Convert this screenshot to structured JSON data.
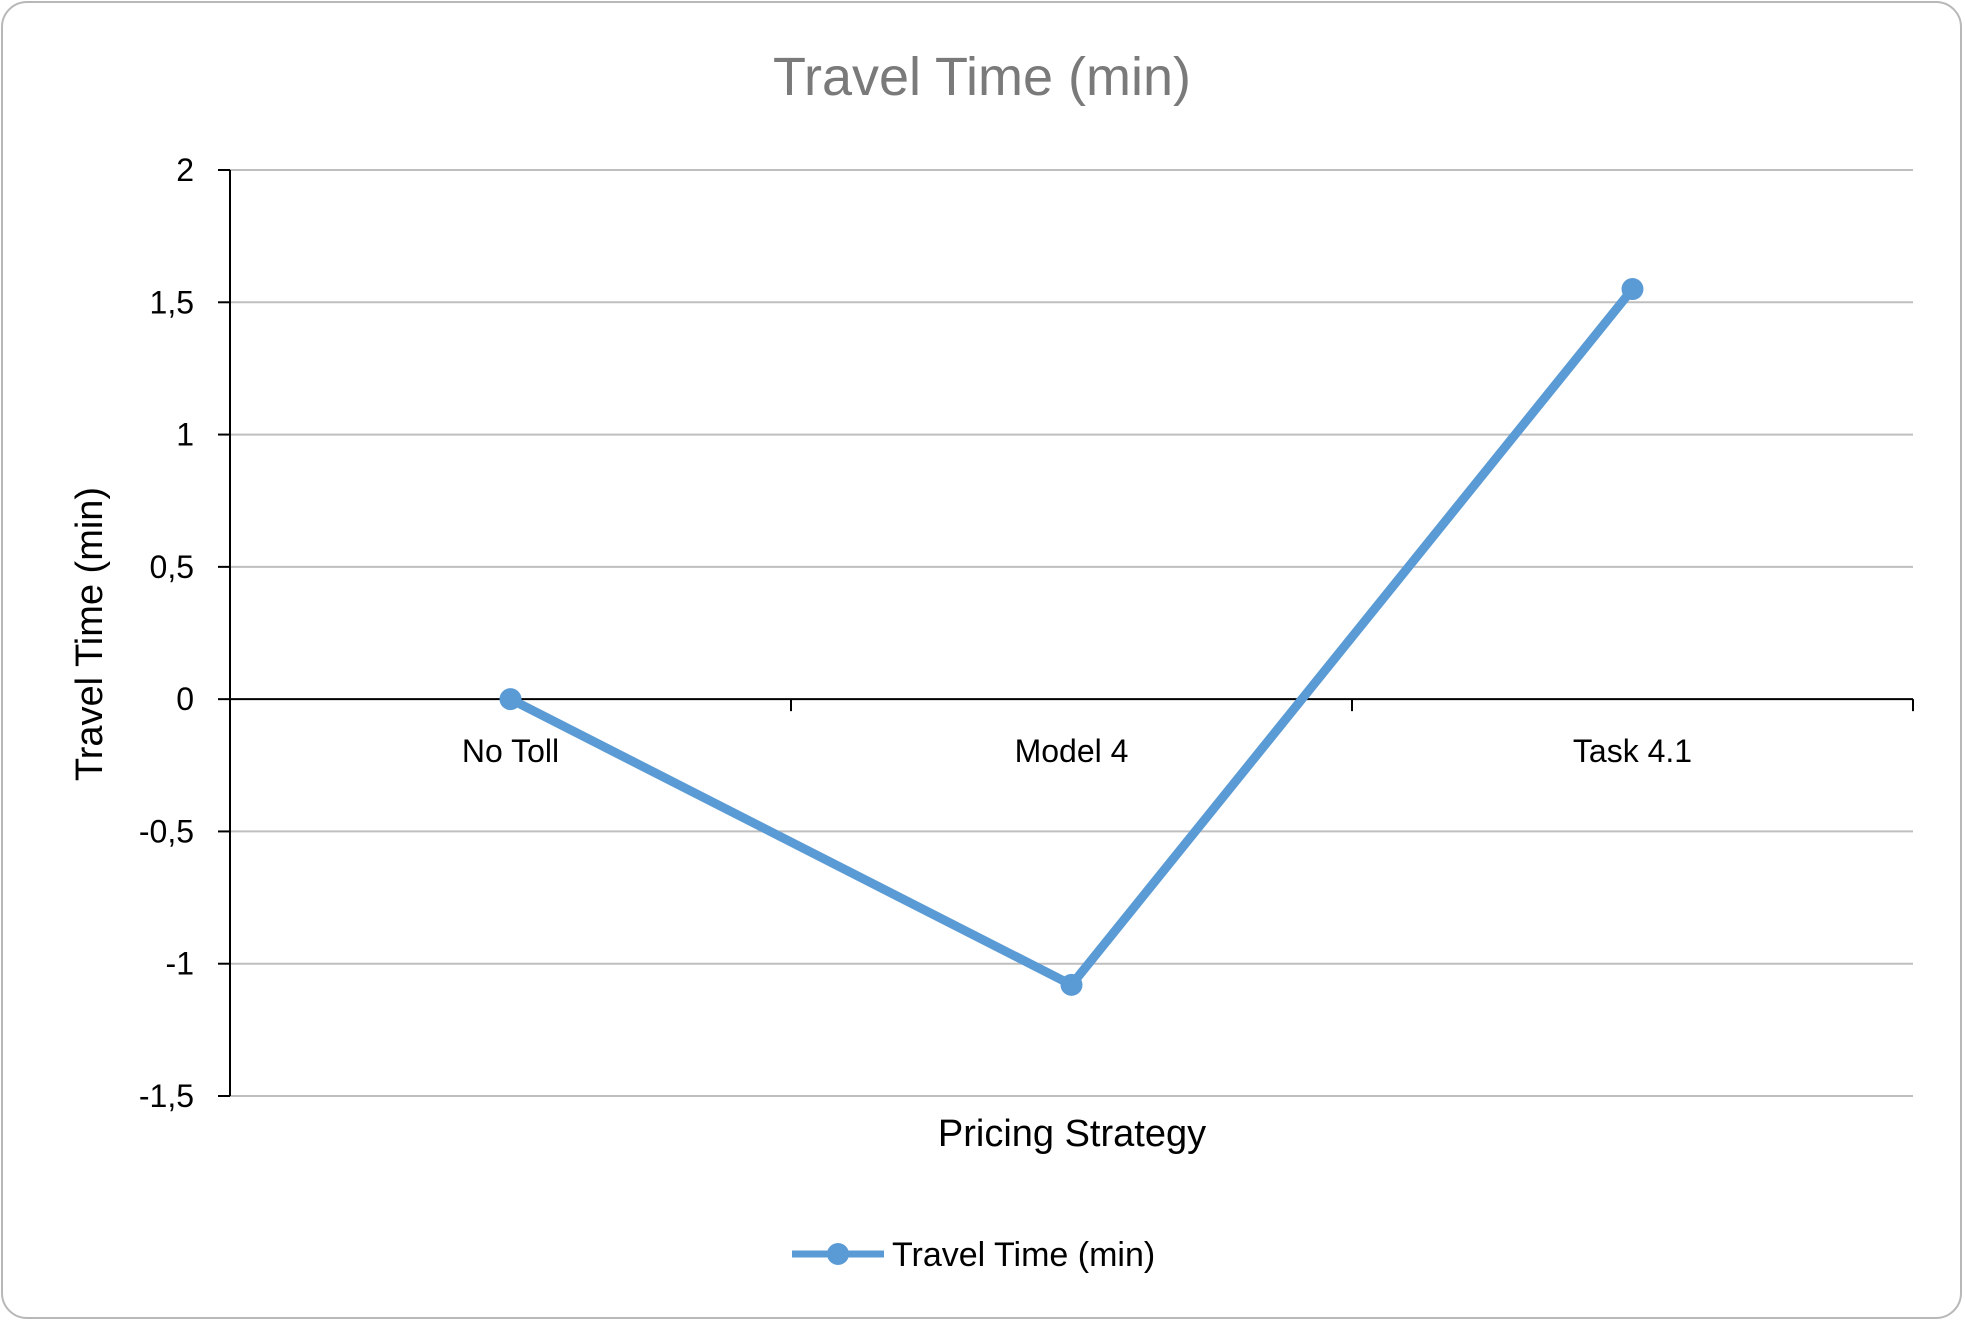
{
  "chart_data": {
    "type": "line",
    "title": "Travel Time (min)",
    "xlabel": "Pricing Strategy",
    "ylabel": "Travel Time (min)",
    "categories": [
      "No Toll",
      "Model 4",
      "Task 4.1"
    ],
    "series": [
      {
        "name": "Travel Time (min)",
        "values": [
          0,
          -1.08,
          1.55
        ],
        "color": "#5b9bd5"
      }
    ],
    "ylim": [
      -1.5,
      2
    ],
    "yticks": [
      2,
      1.5,
      1,
      0.5,
      0,
      -0.5,
      -1,
      -1.5
    ],
    "ytick_labels": [
      "2",
      "1,5",
      "1",
      "0,5",
      "0",
      "-0,5",
      "-1",
      "-1,5"
    ],
    "grid": true,
    "legend": "bottom",
    "colors": {
      "gridline": "#bfbfbf",
      "axis": "#000000",
      "title": "#7a7a7a"
    }
  }
}
